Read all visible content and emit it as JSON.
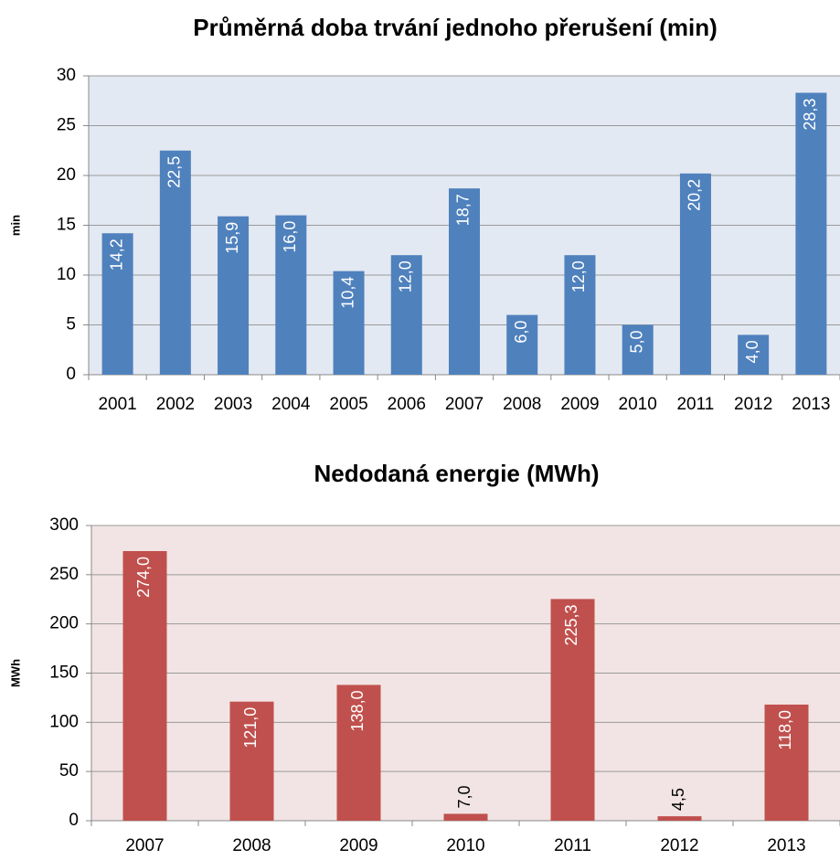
{
  "chart_data": [
    {
      "type": "bar",
      "title": "Průměrná doba trvání jednoho přerušení (min)",
      "y_label": "min",
      "categories": [
        "2001",
        "2002",
        "2003",
        "2004",
        "2005",
        "2006",
        "2007",
        "2008",
        "2009",
        "2010",
        "2011",
        "2012",
        "2013"
      ],
      "values": [
        14.2,
        22.5,
        15.9,
        16.0,
        10.4,
        12.0,
        18.7,
        6.0,
        12.0,
        5.0,
        20.2,
        4.0,
        28.3
      ],
      "value_labels": [
        "14,2",
        "22,5",
        "15,9",
        "16,0",
        "10,4",
        "12,0",
        "18,7",
        "6,0",
        "12,0",
        "5,0",
        "20,2",
        "4,0",
        "28,3"
      ],
      "color": "#4f81bd",
      "background": "#e3e9f2",
      "ylim": [
        0,
        30
      ],
      "yticks": [
        0,
        5,
        10,
        15,
        20,
        25,
        30
      ],
      "grid": true
    },
    {
      "type": "bar",
      "title": "Nedodaná energie (MWh)",
      "y_label": "MWh",
      "categories": [
        "2007",
        "2008",
        "2009",
        "2010",
        "2011",
        "2012",
        "2013"
      ],
      "values": [
        274.0,
        121.0,
        138.0,
        7.0,
        225.3,
        4.5,
        118.0
      ],
      "value_labels": [
        "274,0",
        "121,0",
        "138,0",
        "7,0",
        "225,3",
        "4,5",
        "118,0"
      ],
      "color": "#c0504d",
      "background": "#f2e4e4",
      "ylim": [
        0,
        300
      ],
      "yticks": [
        0,
        50,
        100,
        150,
        200,
        250,
        300
      ],
      "grid": true
    }
  ]
}
